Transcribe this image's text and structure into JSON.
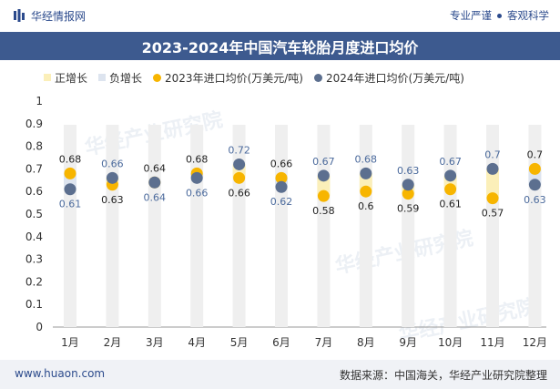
{
  "header": {
    "brand": "华经情报网",
    "tagline_left": "专业严谨",
    "tagline_right": "客观科学"
  },
  "footer": {
    "url": "www.huaon.com",
    "source": "数据来源：中国海关，华经产业研究院整理"
  },
  "colors": {
    "brand": "#2b4a8c",
    "title_bg": "#3d5a8f",
    "pos_bar": "#fbefb9",
    "neg_bar": "#dde4ef",
    "series_2023": "#f7b500",
    "series_2024": "#5c6f8f",
    "col_bg": "#efefef"
  },
  "chart_data": {
    "type": "line",
    "title": "2023-2024年中国汽车轮胎月度进口均价",
    "legend": [
      "正增长",
      "负增长",
      "2023年进口均价(万美元/吨)",
      "2024年进口均价(万美元/吨)"
    ],
    "legend_placement": "top",
    "categories": [
      "1月",
      "2月",
      "3月",
      "4月",
      "5月",
      "6月",
      "7月",
      "8月",
      "9月",
      "10月",
      "11月",
      "12月"
    ],
    "series": [
      {
        "name": "2023年进口均价(万美元/吨)",
        "values": [
          0.68,
          0.63,
          0.64,
          0.68,
          0.66,
          0.66,
          0.58,
          0.6,
          0.59,
          0.61,
          0.57,
          0.7
        ]
      },
      {
        "name": "2024年进口均价(万美元/吨)",
        "values": [
          0.61,
          0.66,
          0.64,
          0.66,
          0.72,
          0.62,
          0.67,
          0.68,
          0.63,
          0.67,
          0.7,
          0.63
        ]
      }
    ],
    "yticks": [
      "0",
      "0.1",
      "0.2",
      "0.3",
      "0.4",
      "0.5",
      "0.6",
      "0.7",
      "0.8",
      "0.9",
      "1"
    ],
    "ylim": [
      0,
      1
    ],
    "grid": false
  },
  "watermark": "华经产业研究院"
}
